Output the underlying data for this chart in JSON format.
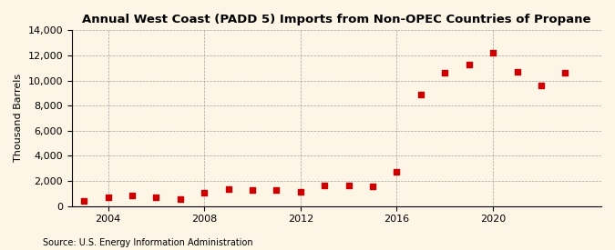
{
  "title": "Annual West Coast (PADD 5) Imports from Non-OPEC Countries of Propane",
  "ylabel": "Thousand Barrels",
  "source": "Source: U.S. Energy Information Administration",
  "background_color": "#fdf5e6",
  "marker_color": "#cc0000",
  "years": [
    2003,
    2004,
    2005,
    2006,
    2007,
    2008,
    2009,
    2010,
    2011,
    2012,
    2013,
    2014,
    2015,
    2016,
    2017,
    2018,
    2019,
    2020,
    2021,
    2022,
    2023
  ],
  "values": [
    400,
    700,
    850,
    700,
    550,
    1050,
    1350,
    1300,
    1250,
    1150,
    1600,
    1650,
    1550,
    2750,
    8900,
    10600,
    11300,
    12200,
    10700,
    9600,
    10600
  ],
  "ylim": [
    0,
    14000
  ],
  "yticks": [
    0,
    2000,
    4000,
    6000,
    8000,
    10000,
    12000,
    14000
  ],
  "xticks": [
    2004,
    2008,
    2012,
    2016,
    2020
  ],
  "xlim": [
    2002.5,
    2024.5
  ]
}
